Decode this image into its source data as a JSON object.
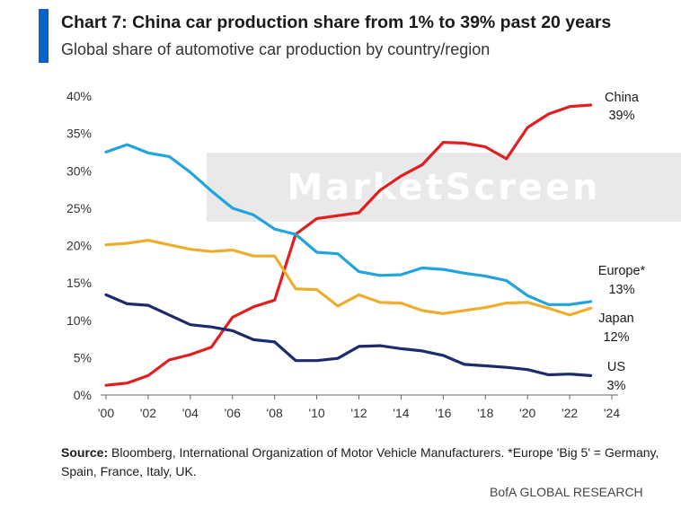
{
  "header": {
    "title": "Chart 7: China car production share from 1% to 39% past 20 years",
    "subtitle": "Global share of automotive car production by country/region"
  },
  "watermark": {
    "text": "MarketScreen"
  },
  "footer": {
    "source_label": "Source:",
    "source_text": " Bloomberg, International Organization of Motor Vehicle Manufacturers. *Europe 'Big 5' = Germany, Spain, France, Italy, UK.",
    "brand": "BofA GLOBAL RESEARCH"
  },
  "chart_data": {
    "type": "line",
    "title": "Chart 7: China car production share from 1% to 39% past 20 years",
    "subtitle": "Global share of automotive car production by country/region",
    "xlabel": "",
    "ylabel": "",
    "x": [
      2000,
      2001,
      2002,
      2003,
      2004,
      2005,
      2006,
      2007,
      2008,
      2009,
      2010,
      2011,
      2012,
      2013,
      2014,
      2015,
      2016,
      2017,
      2018,
      2019,
      2020,
      2021,
      2022,
      2023
    ],
    "xlim": [
      2000,
      2024
    ],
    "ylim": [
      0,
      40
    ],
    "x_ticks": [
      2000,
      2002,
      2004,
      2006,
      2008,
      2010,
      2012,
      2014,
      2016,
      2018,
      2020,
      2022,
      2024
    ],
    "x_tick_labels": [
      "'00",
      "'02",
      "'04",
      "'06",
      "'08",
      "'10",
      "'12",
      "'14",
      "'16",
      "'18",
      "'20",
      "'22",
      "'24"
    ],
    "y_ticks": [
      0,
      5,
      10,
      15,
      20,
      25,
      30,
      35,
      40
    ],
    "y_tick_labels": [
      "0%",
      "5%",
      "10%",
      "15%",
      "20%",
      "25%",
      "30%",
      "35%",
      "40%"
    ],
    "grid": false,
    "legend": "end-of-line labels",
    "series": [
      {
        "name": "China",
        "end_label": [
          "China",
          "39%"
        ],
        "color": "#e02020",
        "values": [
          1.3,
          1.6,
          2.6,
          4.7,
          5.4,
          6.4,
          10.4,
          11.8,
          12.7,
          21.5,
          23.6,
          24.0,
          24.4,
          27.4,
          29.3,
          30.8,
          33.8,
          33.7,
          33.2,
          31.6,
          35.8,
          37.6,
          38.6,
          38.8
        ]
      },
      {
        "name": "Europe*",
        "end_label": [
          "Europe*",
          "13%"
        ],
        "color": "#21a4dc",
        "values": [
          32.5,
          33.5,
          32.4,
          31.9,
          29.8,
          27.3,
          25.0,
          24.1,
          22.2,
          21.5,
          19.1,
          18.9,
          16.5,
          16.0,
          16.1,
          17.0,
          16.8,
          16.3,
          15.9,
          15.3,
          13.3,
          12.1,
          12.1,
          12.5
        ]
      },
      {
        "name": "Japan",
        "end_label": [
          "Japan",
          "12%"
        ],
        "color": "#efad2c",
        "values": [
          20.1,
          20.3,
          20.7,
          20.1,
          19.5,
          19.2,
          19.4,
          18.6,
          18.6,
          14.2,
          14.1,
          11.9,
          13.4,
          12.4,
          12.3,
          11.3,
          10.9,
          11.3,
          11.7,
          12.3,
          12.4,
          11.6,
          10.7,
          11.6
        ]
      },
      {
        "name": "US",
        "end_label": [
          "US",
          "3%"
        ],
        "color": "#1b2b6b",
        "values": [
          13.4,
          12.2,
          12.0,
          10.7,
          9.4,
          9.1,
          8.6,
          7.4,
          7.1,
          4.6,
          4.6,
          4.9,
          6.5,
          6.6,
          6.2,
          5.9,
          5.3,
          4.1,
          3.9,
          3.7,
          3.4,
          2.7,
          2.8,
          2.6
        ]
      }
    ]
  }
}
